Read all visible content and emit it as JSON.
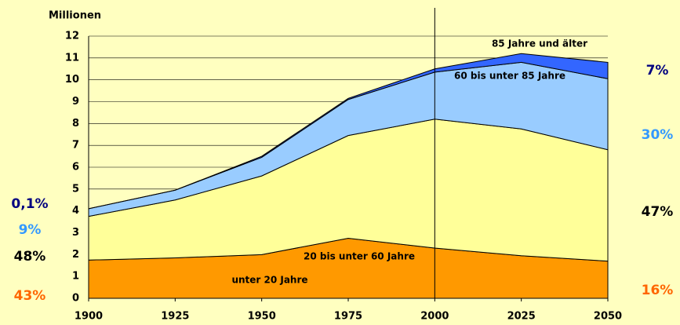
{
  "chart_data": {
    "type": "stacked_area",
    "ylabel": "Millionen",
    "x": [
      1900,
      1925,
      1950,
      1975,
      2000,
      2025,
      2050
    ],
    "xlim": [
      1900,
      2050
    ],
    "xticks": [
      1900,
      1925,
      1950,
      1975,
      2000,
      2025,
      2050
    ],
    "ylim": [
      0,
      12
    ],
    "yticks": [
      0,
      1,
      2,
      3,
      4,
      5,
      6,
      7,
      8,
      9,
      10,
      11,
      12
    ],
    "grid": true,
    "reference_line_x": 2000,
    "series": [
      {
        "name": "unter 20 Jahre",
        "color": "#ff9900",
        "values": [
          1.75,
          1.85,
          2.0,
          2.75,
          2.3,
          1.95,
          1.7
        ]
      },
      {
        "name": "20 bis unter 60 Jahre",
        "color": "#ffff99",
        "values": [
          2.0,
          2.65,
          3.6,
          4.7,
          5.9,
          5.8,
          5.1
        ]
      },
      {
        "name": "60 bis unter 85 Jahre",
        "color": "#99ccff",
        "values": [
          0.35,
          0.45,
          0.85,
          1.65,
          2.15,
          3.05,
          3.25
        ]
      },
      {
        "name": "85 Jahre und älter",
        "color": "#3366ff",
        "values": [
          0.0,
          0.0,
          0.05,
          0.05,
          0.15,
          0.4,
          0.75
        ]
      }
    ],
    "annotations": [
      {
        "text": "0,1%",
        "color": "#000080",
        "side": "left"
      },
      {
        "text": "9%",
        "color": "#3399ff",
        "side": "left"
      },
      {
        "text": "48%",
        "color": "#000000",
        "side": "left"
      },
      {
        "text": "43%",
        "color": "#ff6600",
        "side": "left"
      },
      {
        "text": "7%",
        "color": "#000080",
        "side": "right"
      },
      {
        "text": "30%",
        "color": "#3399ff",
        "side": "right"
      },
      {
        "text": "47%",
        "color": "#000000",
        "side": "right"
      },
      {
        "text": "16%",
        "color": "#ff6600",
        "side": "right"
      }
    ]
  }
}
